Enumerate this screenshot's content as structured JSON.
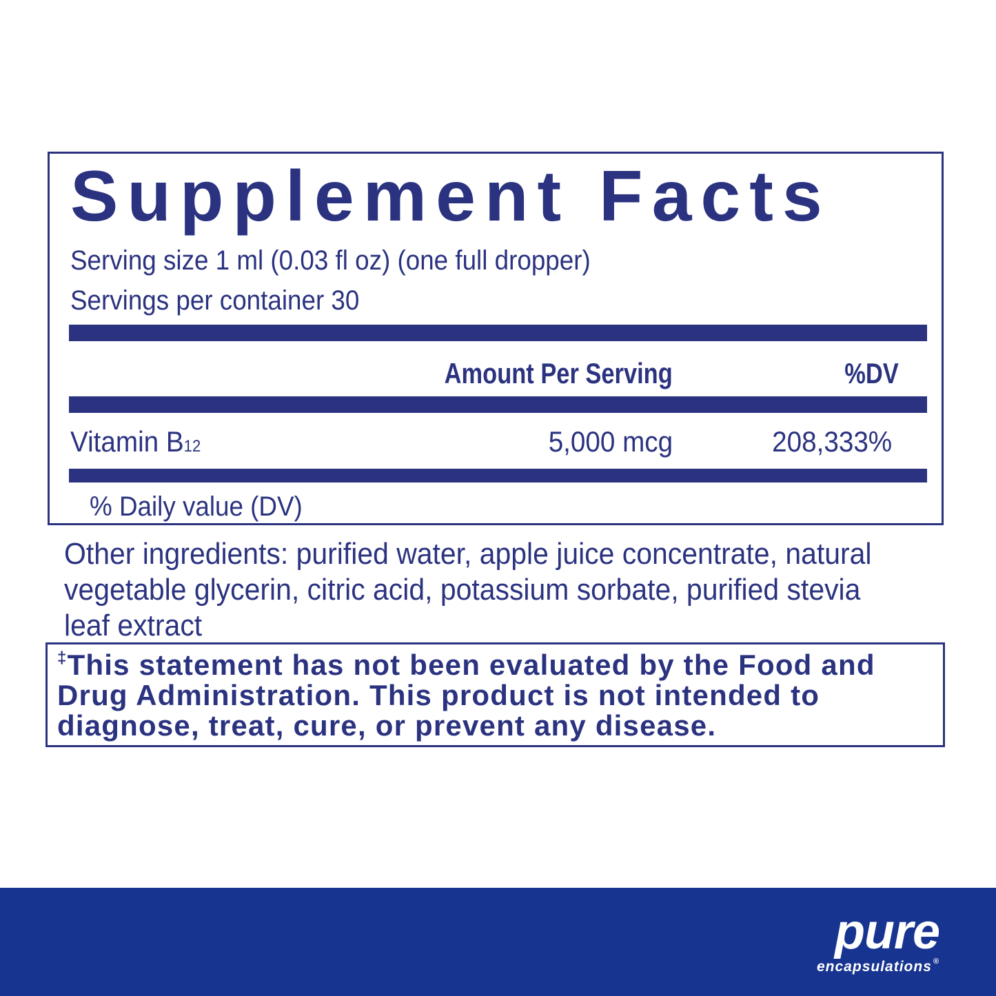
{
  "facts": {
    "title": "Supplement Facts",
    "serving_size": "Serving size  1 ml (0.03 fl oz) (one full dropper)",
    "servings_per_container": "Servings per container  30",
    "header_amount": "Amount Per Serving",
    "header_dv": "%DV",
    "rows": [
      {
        "name": "Vitamin B",
        "subscript": "12",
        "amount": "5,000 mcg",
        "dv": "208,333%"
      }
    ],
    "footnote": "% Daily value (DV)"
  },
  "other_ingredients": "Other ingredients: purified water, apple juice concentrate, natural vegetable glycerin, citric acid, potassium sorbate, purified stevia leaf extract",
  "disclaimer": {
    "symbol": "‡",
    "text": "This statement has not been evaluated by the Food and Drug Administration. This product is not intended to diagnose, treat, cure, or prevent any disease."
  },
  "brand": {
    "name": "pure",
    "subname": "encapsulations",
    "mark": "®"
  },
  "colors": {
    "text": "#2b3380",
    "footer": "#173490"
  }
}
